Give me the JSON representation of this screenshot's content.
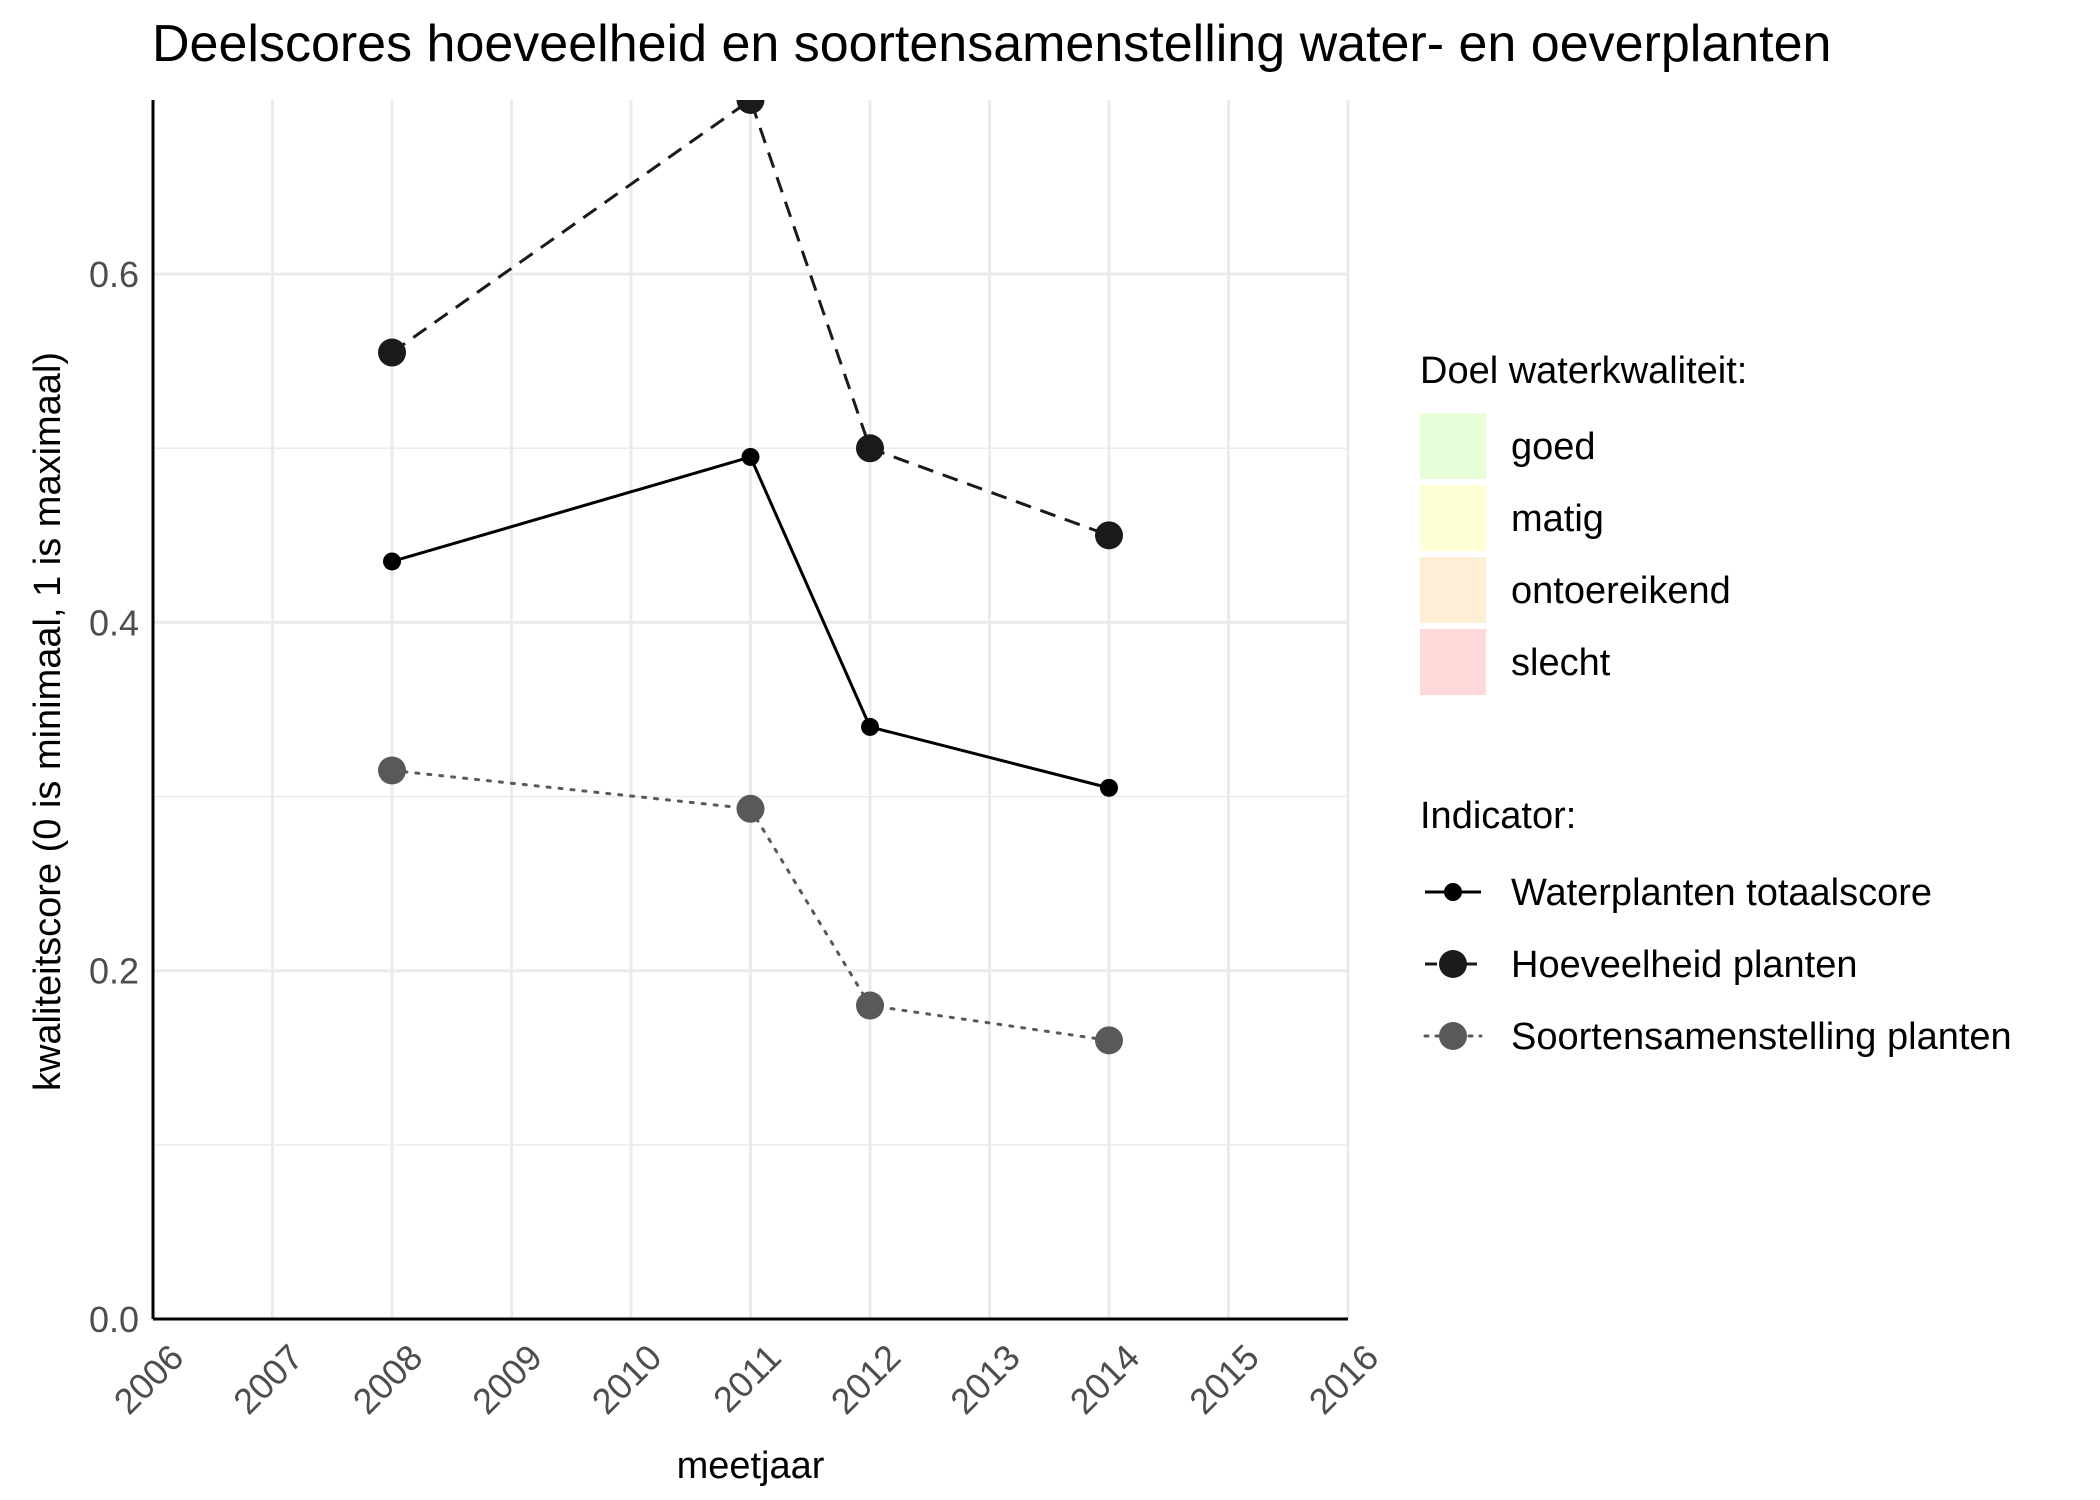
{
  "chart_data": {
    "type": "line",
    "title": "Deelscores hoeveelheid en soortensamenstelling water- en oeverplanten",
    "xlabel": "meetjaar",
    "ylabel": "kwaliteitscore (0 is minimaal, 1 is maximaal)",
    "xlim": [
      2006,
      2016
    ],
    "ylim": [
      0,
      0.7
    ],
    "x_ticks": [
      "2006",
      "2007",
      "2008",
      "2009",
      "2010",
      "2011",
      "2012",
      "2013",
      "2014",
      "2015",
      "2016"
    ],
    "y_ticks": [
      "0.0",
      "0.2",
      "0.4",
      "0.6"
    ],
    "grid": true,
    "legend_position": "right",
    "series": [
      {
        "name": "Waterplanten totaalscore",
        "x": [
          2008,
          2011,
          2012,
          2014
        ],
        "values": [
          0.435,
          0.495,
          0.34,
          0.305
        ],
        "color": "#000000",
        "dash": "solid",
        "marker_size": "small"
      },
      {
        "name": "Hoeveelheid planten",
        "x": [
          2008,
          2011,
          2012,
          2014
        ],
        "values": [
          0.555,
          0.7,
          0.5,
          0.45
        ],
        "color": "#1a1a1a",
        "dash": "dashed",
        "marker_size": "large"
      },
      {
        "name": "Soortensamenstelling planten",
        "x": [
          2008,
          2011,
          2012,
          2014
        ],
        "values": [
          0.315,
          0.293,
          0.18,
          0.16
        ],
        "color": "#595959",
        "dash": "dotted",
        "marker_size": "large"
      }
    ],
    "legend_fill": {
      "title": "Doel waterkwaliteit:",
      "items": [
        {
          "label": "goed",
          "color": "#e6ffd9"
        },
        {
          "label": "matig",
          "color": "#ffffd6"
        },
        {
          "label": "ontoereikend",
          "color": "#ffeed6"
        },
        {
          "label": "slecht",
          "color": "#ffd9d9"
        }
      ]
    },
    "legend_series_title": "Indicator:"
  }
}
